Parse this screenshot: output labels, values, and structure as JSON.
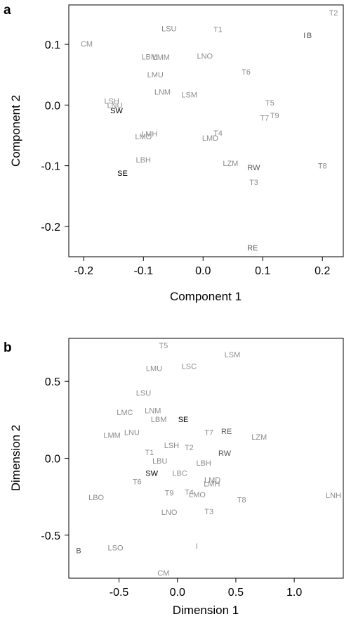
{
  "chart_data": [
    {
      "type": "scatter",
      "panel_label": "a",
      "xlabel": "Component 1",
      "ylabel": "Component 2",
      "xlim": [
        -0.225,
        0.235
      ],
      "ylim": [
        -0.25,
        0.165
      ],
      "xticks": [
        -0.2,
        -0.1,
        0.0,
        0.1,
        0.2
      ],
      "xtick_labels": [
        "-0.2",
        "-0.1",
        "0.0",
        "0.1",
        "0.2"
      ],
      "yticks": [
        -0.2,
        -0.1,
        0.0,
        0.1
      ],
      "ytick_labels": [
        "-0.2",
        "-0.1",
        "0.0",
        "0.1"
      ],
      "grid": false,
      "colors": {
        "highlight": "#000000",
        "muted": "#8c8c8c",
        "mid": "#555555"
      },
      "points": [
        {
          "label": "T2",
          "x": 0.23,
          "y": 0.152,
          "tone": "muted"
        },
        {
          "label": "CM",
          "x": -0.195,
          "y": 0.101,
          "tone": "muted"
        },
        {
          "label": "LSU",
          "x": -0.057,
          "y": 0.126,
          "tone": "muted"
        },
        {
          "label": "T1",
          "x": 0.025,
          "y": 0.125,
          "tone": "muted"
        },
        {
          "label": "I",
          "x": 0.17,
          "y": 0.115,
          "tone": "mid"
        },
        {
          "label": "B",
          "x": 0.178,
          "y": 0.115,
          "tone": "mid"
        },
        {
          "label": "LBM",
          "x": -0.09,
          "y": 0.08,
          "tone": "muted"
        },
        {
          "label": "LMM",
          "x": -0.07,
          "y": 0.079,
          "tone": "muted"
        },
        {
          "label": "LNO",
          "x": 0.003,
          "y": 0.081,
          "tone": "muted"
        },
        {
          "label": "T6",
          "x": 0.072,
          "y": 0.055,
          "tone": "muted"
        },
        {
          "label": "LMU",
          "x": -0.08,
          "y": 0.05,
          "tone": "muted"
        },
        {
          "label": "LNM",
          "x": -0.068,
          "y": 0.022,
          "tone": "muted"
        },
        {
          "label": "LSM",
          "x": -0.023,
          "y": 0.017,
          "tone": "muted"
        },
        {
          "label": "LSH",
          "x": -0.153,
          "y": 0.007,
          "tone": "muted"
        },
        {
          "label": "LNU",
          "x": -0.148,
          "y": 0.0,
          "tone": "muted"
        },
        {
          "label": "SW",
          "x": -0.145,
          "y": -0.009,
          "tone": "highlight"
        },
        {
          "label": "T5",
          "x": 0.112,
          "y": 0.004,
          "tone": "muted"
        },
        {
          "label": "T9",
          "x": 0.12,
          "y": -0.017,
          "tone": "muted"
        },
        {
          "label": "T7",
          "x": 0.103,
          "y": -0.021,
          "tone": "muted"
        },
        {
          "label": "LMH",
          "x": -0.09,
          "y": -0.047,
          "tone": "muted"
        },
        {
          "label": "LMO",
          "x": -0.1,
          "y": -0.052,
          "tone": "muted"
        },
        {
          "label": "T4",
          "x": 0.025,
          "y": -0.046,
          "tone": "muted"
        },
        {
          "label": "LMD",
          "x": 0.012,
          "y": -0.054,
          "tone": "muted"
        },
        {
          "label": "LBH",
          "x": -0.1,
          "y": -0.09,
          "tone": "muted"
        },
        {
          "label": "LZM",
          "x": 0.046,
          "y": -0.096,
          "tone": "muted"
        },
        {
          "label": "RW",
          "x": 0.085,
          "y": -0.103,
          "tone": "mid"
        },
        {
          "label": "T8",
          "x": 0.2,
          "y": -0.1,
          "tone": "muted"
        },
        {
          "label": "SE",
          "x": -0.135,
          "y": -0.112,
          "tone": "highlight"
        },
        {
          "label": "T3",
          "x": 0.085,
          "y": -0.127,
          "tone": "muted"
        },
        {
          "label": "RE",
          "x": 0.083,
          "y": -0.235,
          "tone": "mid"
        }
      ]
    },
    {
      "type": "scatter",
      "panel_label": "b",
      "xlabel": "Dimension 1",
      "ylabel": "Dimension 2",
      "xlim": [
        -0.93,
        1.42
      ],
      "ylim": [
        -0.78,
        0.78
      ],
      "xticks": [
        -0.5,
        0.0,
        0.5,
        1.0
      ],
      "xtick_labels": [
        "-0.5",
        "0.0",
        "0.5",
        "1.0"
      ],
      "yticks": [
        -0.5,
        0.0,
        0.5
      ],
      "ytick_labels": [
        "-0.5",
        "0.0",
        "0.5"
      ],
      "grid": false,
      "colors": {
        "highlight": "#000000",
        "muted": "#8c8c8c",
        "mid": "#555555"
      },
      "points": [
        {
          "label": "T5",
          "x": -0.12,
          "y": 0.735,
          "tone": "muted"
        },
        {
          "label": "LSM",
          "x": 0.47,
          "y": 0.675,
          "tone": "muted"
        },
        {
          "label": "LMU",
          "x": -0.2,
          "y": 0.585,
          "tone": "muted"
        },
        {
          "label": "LSC",
          "x": 0.1,
          "y": 0.6,
          "tone": "muted"
        },
        {
          "label": "LSU",
          "x": -0.29,
          "y": 0.425,
          "tone": "muted"
        },
        {
          "label": "LMC",
          "x": -0.45,
          "y": 0.3,
          "tone": "muted"
        },
        {
          "label": "LNM",
          "x": -0.21,
          "y": 0.31,
          "tone": "muted"
        },
        {
          "label": "LBM",
          "x": -0.16,
          "y": 0.255,
          "tone": "muted"
        },
        {
          "label": "SE",
          "x": 0.05,
          "y": 0.255,
          "tone": "highlight"
        },
        {
          "label": "LMM",
          "x": -0.56,
          "y": 0.15,
          "tone": "muted"
        },
        {
          "label": "LNU",
          "x": -0.39,
          "y": 0.17,
          "tone": "muted"
        },
        {
          "label": "T7",
          "x": 0.27,
          "y": 0.17,
          "tone": "muted"
        },
        {
          "label": "RE",
          "x": 0.42,
          "y": 0.175,
          "tone": "mid"
        },
        {
          "label": "LZM",
          "x": 0.7,
          "y": 0.14,
          "tone": "muted"
        },
        {
          "label": "LSH",
          "x": -0.05,
          "y": 0.085,
          "tone": "muted"
        },
        {
          "label": "T2",
          "x": 0.1,
          "y": 0.07,
          "tone": "muted"
        },
        {
          "label": "T1",
          "x": -0.24,
          "y": 0.04,
          "tone": "muted"
        },
        {
          "label": "RW",
          "x": 0.405,
          "y": 0.035,
          "tone": "mid"
        },
        {
          "label": "LBU",
          "x": -0.15,
          "y": -0.015,
          "tone": "muted"
        },
        {
          "label": "LBH",
          "x": 0.225,
          "y": -0.03,
          "tone": "muted"
        },
        {
          "label": "SW",
          "x": -0.22,
          "y": -0.095,
          "tone": "highlight"
        },
        {
          "label": "LBC",
          "x": 0.02,
          "y": -0.095,
          "tone": "muted"
        },
        {
          "label": "T6",
          "x": -0.345,
          "y": -0.15,
          "tone": "muted"
        },
        {
          "label": "LMD",
          "x": 0.3,
          "y": -0.14,
          "tone": "muted"
        },
        {
          "label": "LMH",
          "x": 0.295,
          "y": -0.165,
          "tone": "muted"
        },
        {
          "label": "LNH",
          "x": 1.38,
          "y": -0.24,
          "tone": "muted"
        },
        {
          "label": "LBO",
          "x": -0.695,
          "y": -0.255,
          "tone": "muted"
        },
        {
          "label": "T9",
          "x": -0.07,
          "y": -0.225,
          "tone": "muted"
        },
        {
          "label": "T4",
          "x": 0.1,
          "y": -0.22,
          "tone": "muted"
        },
        {
          "label": "LMO",
          "x": 0.17,
          "y": -0.235,
          "tone": "muted"
        },
        {
          "label": "T8",
          "x": 0.55,
          "y": -0.27,
          "tone": "muted"
        },
        {
          "label": "LNO",
          "x": -0.07,
          "y": -0.35,
          "tone": "muted"
        },
        {
          "label": "T3",
          "x": 0.27,
          "y": -0.345,
          "tone": "muted"
        },
        {
          "label": "LSO",
          "x": -0.53,
          "y": -0.58,
          "tone": "muted"
        },
        {
          "label": "I",
          "x": 0.165,
          "y": -0.57,
          "tone": "muted"
        },
        {
          "label": "B",
          "x": -0.88,
          "y": -0.6,
          "tone": "mid"
        },
        {
          "label": "CM",
          "x": -0.12,
          "y": -0.745,
          "tone": "muted"
        }
      ]
    }
  ]
}
